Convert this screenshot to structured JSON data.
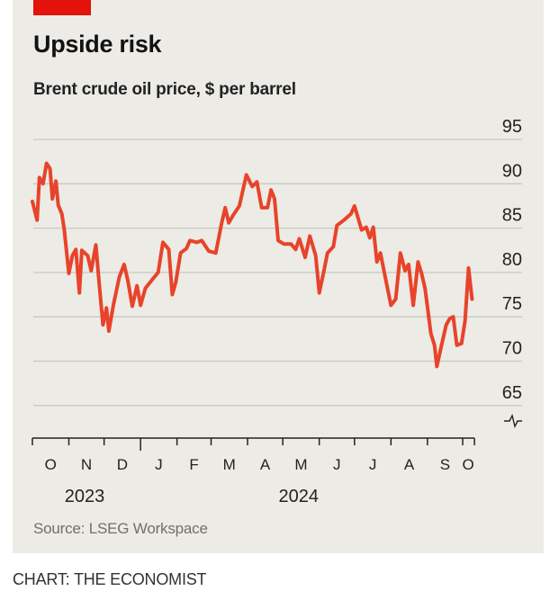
{
  "header": {
    "title": "Upside risk",
    "subtitle": "Brent crude oil price, $ per barrel"
  },
  "source": "Source: LSEG Workspace",
  "footer": "CHART: THE ECONOMIST",
  "colors": {
    "line": "#e8432b",
    "accent_bar": "#e3120b",
    "background": "#ecebe5",
    "grid": "#c9c8c2"
  },
  "chart_data": {
    "type": "line",
    "title": "Upside risk",
    "subtitle": "Brent crude oil price, $ per barrel",
    "ylabel": "",
    "xlabel": "",
    "ylim": [
      65,
      95
    ],
    "yticks": [
      95,
      90,
      85,
      80,
      75,
      70,
      65
    ],
    "y_axis_broken": true,
    "xlim": [
      "2023-10-01",
      "2024-10-11"
    ],
    "xtick_labels": [
      "O",
      "N",
      "D",
      "J",
      "F",
      "M",
      "A",
      "M",
      "J",
      "J",
      "A",
      "S",
      "O"
    ],
    "year_labels": [
      "2023",
      "2024"
    ],
    "grid": "horizontal",
    "series": [
      {
        "x": [
          "2023-10-01",
          "2023-10-05",
          "2023-10-07",
          "2023-10-10",
          "2023-10-13",
          "2023-10-16",
          "2023-10-18",
          "2023-10-21",
          "2023-10-23",
          "2023-10-26",
          "2023-10-28",
          "2023-11-01",
          "2023-11-04",
          "2023-11-07",
          "2023-11-10",
          "2023-11-12",
          "2023-11-17",
          "2023-11-20",
          "2023-11-24",
          "2023-11-27",
          "2023-11-30",
          "2023-12-03",
          "2023-12-05",
          "2023-12-09",
          "2023-12-14",
          "2023-12-18",
          "2023-12-21",
          "2023-12-25",
          "2023-12-29",
          "2024-01-01",
          "2024-01-05",
          "2024-01-11",
          "2024-01-16",
          "2024-01-20",
          "2024-01-25",
          "2024-01-28",
          "2024-01-31",
          "2024-02-04",
          "2024-02-09",
          "2024-02-12",
          "2024-02-18",
          "2024-02-22",
          "2024-02-28",
          "2024-03-05",
          "2024-03-10",
          "2024-03-13",
          "2024-03-16",
          "2024-03-20",
          "2024-03-25",
          "2024-03-31",
          "2024-04-05",
          "2024-04-09",
          "2024-04-13",
          "2024-04-18",
          "2024-04-21",
          "2024-04-24",
          "2024-04-27",
          "2024-05-02",
          "2024-05-08",
          "2024-05-12",
          "2024-05-15",
          "2024-05-20",
          "2024-05-24",
          "2024-05-29",
          "2024-06-01",
          "2024-06-05",
          "2024-06-08",
          "2024-06-13",
          "2024-06-16",
          "2024-06-22",
          "2024-06-28",
          "2024-07-01",
          "2024-07-07",
          "2024-07-11",
          "2024-07-14",
          "2024-07-17",
          "2024-07-20",
          "2024-07-23",
          "2024-07-28",
          "2024-08-01",
          "2024-08-05",
          "2024-08-09",
          "2024-08-13",
          "2024-08-16",
          "2024-08-20",
          "2024-08-24",
          "2024-08-27",
          "2024-08-30",
          "2024-09-04",
          "2024-09-07",
          "2024-09-09",
          "2024-09-13",
          "2024-09-17",
          "2024-09-20",
          "2024-09-23",
          "2024-09-26",
          "2024-09-30",
          "2024-10-03",
          "2024-10-06",
          "2024-10-09"
        ],
        "values": [
          88.0,
          85.9,
          90.7,
          90.0,
          92.3,
          91.7,
          88.3,
          90.3,
          87.6,
          86.6,
          84.9,
          79.9,
          81.9,
          82.6,
          77.7,
          82.5,
          81.9,
          80.2,
          83.1,
          78.5,
          74.1,
          76.0,
          73.4,
          76.4,
          79.5,
          80.9,
          79.2,
          76.2,
          78.5,
          76.3,
          78.2,
          79.2,
          80.0,
          83.4,
          82.6,
          77.5,
          78.9,
          82.2,
          82.7,
          83.6,
          83.4,
          83.6,
          82.4,
          82.2,
          85.6,
          87.3,
          85.6,
          86.5,
          87.5,
          91.0,
          89.7,
          90.2,
          87.3,
          87.3,
          89.3,
          88.3,
          83.6,
          83.2,
          83.2,
          82.6,
          83.8,
          81.7,
          84.1,
          81.9,
          77.7,
          80.2,
          82.2,
          82.9,
          85.3,
          85.9,
          86.6,
          87.5,
          84.8,
          85.1,
          83.9,
          85.1,
          81.2,
          82.2,
          78.9,
          76.3,
          77.0,
          82.2,
          80.2,
          80.9,
          76.3,
          81.2,
          79.9,
          78.2,
          73.1,
          71.8,
          69.4,
          71.8,
          74.1,
          74.8,
          75.0,
          71.8,
          72.0,
          74.5,
          80.5,
          77.0
        ]
      }
    ]
  }
}
